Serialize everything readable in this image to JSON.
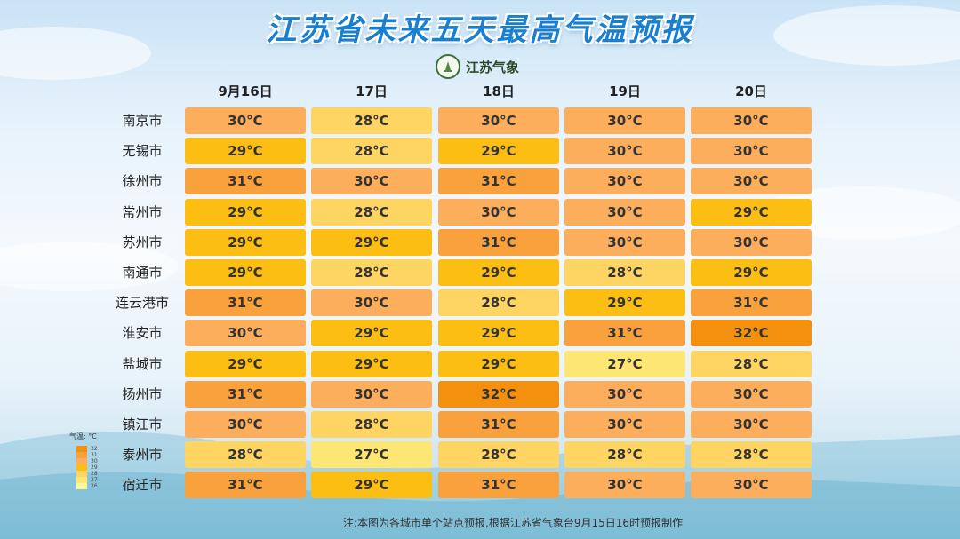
{
  "header": {
    "title": "江苏省未来五天最高气温预报",
    "logo_text": "江苏气象"
  },
  "chart_data": {
    "type": "table",
    "title": "江苏省未来五天最高气温预报",
    "columns": [
      "9月16日",
      "17日",
      "18日",
      "19日",
      "20日"
    ],
    "rows": [
      "南京市",
      "无锡市",
      "徐州市",
      "常州市",
      "苏州市",
      "南通市",
      "连云港市",
      "淮安市",
      "盐城市",
      "扬州市",
      "镇江市",
      "泰州市",
      "宿迁市"
    ],
    "unit": "°C",
    "values": [
      [
        30,
        28,
        30,
        30,
        30
      ],
      [
        29,
        28,
        29,
        30,
        30
      ],
      [
        31,
        30,
        31,
        30,
        30
      ],
      [
        29,
        28,
        30,
        30,
        29
      ],
      [
        29,
        29,
        31,
        30,
        30
      ],
      [
        29,
        28,
        29,
        28,
        29
      ],
      [
        31,
        30,
        28,
        29,
        31
      ],
      [
        30,
        29,
        29,
        31,
        32
      ],
      [
        29,
        29,
        29,
        27,
        28
      ],
      [
        31,
        30,
        32,
        30,
        30
      ],
      [
        30,
        28,
        31,
        30,
        30
      ],
      [
        28,
        27,
        28,
        28,
        28
      ],
      [
        31,
        29,
        31,
        30,
        30
      ]
    ],
    "color_scale": {
      "32": "#f5900e",
      "31": "#f9a13c",
      "30": "#fcae5c",
      "29": "#fdbe14",
      "28": "#fed562",
      "27": "#fee674",
      "26": "#fcf69a"
    }
  },
  "legend": {
    "title": "气温: °C",
    "items": [
      "32",
      "31",
      "30",
      "29",
      "28",
      "27",
      "26"
    ]
  },
  "footnote": "注:本图为各城市单个站点预报,根据江苏省气象台9月15日16时预报制作"
}
